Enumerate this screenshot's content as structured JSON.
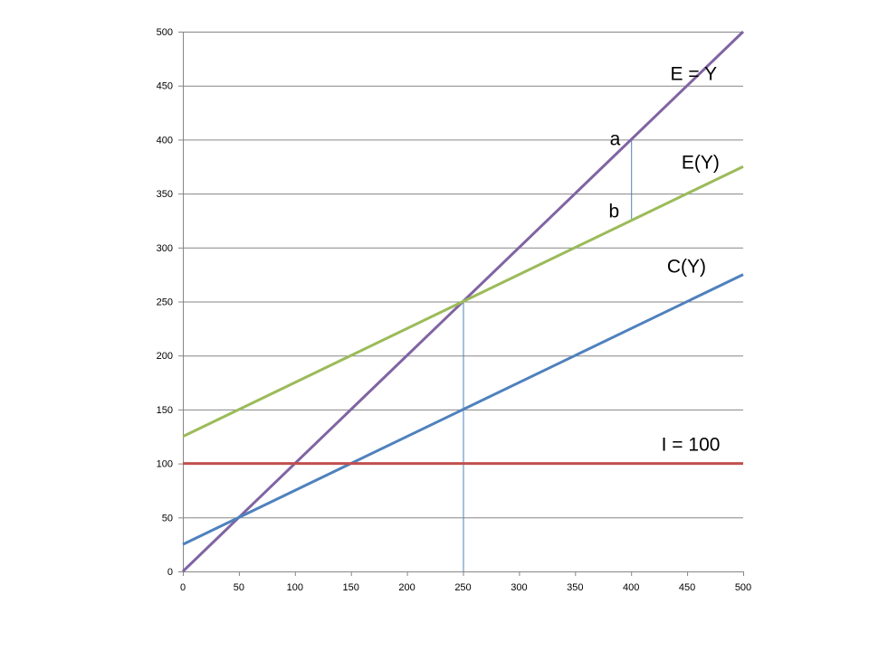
{
  "chart_data": {
    "type": "line",
    "xlim": [
      0,
      500
    ],
    "ylim": [
      0,
      500
    ],
    "x_ticks": [
      0,
      50,
      100,
      150,
      200,
      250,
      300,
      350,
      400,
      450,
      500
    ],
    "y_ticks": [
      0,
      50,
      100,
      150,
      200,
      250,
      300,
      350,
      400,
      450,
      500
    ],
    "grid": "horizontal",
    "legend": "none",
    "series": [
      {
        "key": "e_equals_y",
        "color": "#8064a2",
        "x": [
          0,
          500
        ],
        "y": [
          0,
          500
        ]
      },
      {
        "key": "e_of_y",
        "color": "#9bbb59",
        "x": [
          0,
          500
        ],
        "y": [
          125,
          375
        ]
      },
      {
        "key": "c_of_y",
        "color": "#4f81bd",
        "x": [
          0,
          500
        ],
        "y": [
          25,
          275
        ]
      },
      {
        "key": "investment",
        "color": "#c0504d",
        "x": [
          0,
          500
        ],
        "y": [
          100,
          100
        ]
      }
    ],
    "reference_lines": [
      {
        "key": "equilibrium_drop",
        "color": "#4f81bd",
        "x": [
          250,
          250
        ],
        "y": [
          0,
          250
        ]
      },
      {
        "key": "gap_ab",
        "color": "#4f81bd",
        "x": [
          400,
          400
        ],
        "y": [
          400,
          325
        ]
      }
    ],
    "annotations": [
      {
        "key": "label_e_equals_y",
        "text": "E = Y",
        "x": 435,
        "y": 455
      },
      {
        "key": "label_e_of_y",
        "text": "E(Y)",
        "x": 445,
        "y": 373
      },
      {
        "key": "label_c_of_y",
        "text": "C(Y)",
        "x": 432,
        "y": 277
      },
      {
        "key": "label_investment",
        "text": "I = 100",
        "x": 427,
        "y": 112
      },
      {
        "key": "label_a",
        "text": "a",
        "x": 381,
        "y": 395
      },
      {
        "key": "label_b",
        "text": "b",
        "x": 380,
        "y": 328
      }
    ]
  }
}
